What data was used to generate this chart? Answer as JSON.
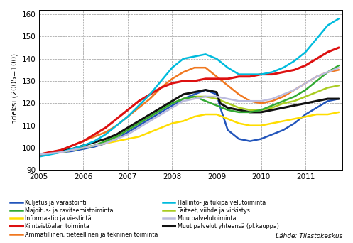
{
  "ylabel": "Indeksi (2005=100)",
  "source": "Lähde: Tilastokeskus",
  "xlim": [
    2005.0,
    2011.83
  ],
  "ylim": [
    90,
    162
  ],
  "yticks": [
    90,
    100,
    110,
    120,
    130,
    140,
    150,
    160
  ],
  "xticks": [
    2005,
    2006,
    2007,
    2008,
    2009,
    2010,
    2011
  ],
  "series": [
    {
      "name": "Kuljetus ja varastointi",
      "color": "#2255bb",
      "lw": 1.8,
      "data": [
        [
          2005.0,
          97
        ],
        [
          2005.25,
          97.5
        ],
        [
          2005.5,
          98
        ],
        [
          2005.75,
          98.5
        ],
        [
          2006.0,
          99.5
        ],
        [
          2006.25,
          100.5
        ],
        [
          2006.5,
          102
        ],
        [
          2006.75,
          104
        ],
        [
          2007.0,
          107
        ],
        [
          2007.25,
          110
        ],
        [
          2007.5,
          113
        ],
        [
          2007.75,
          116
        ],
        [
          2008.0,
          119
        ],
        [
          2008.25,
          122
        ],
        [
          2008.5,
          124
        ],
        [
          2008.75,
          126
        ],
        [
          2009.0,
          124
        ],
        [
          2009.1,
          117
        ],
        [
          2009.25,
          108
        ],
        [
          2009.5,
          104
        ],
        [
          2009.75,
          103
        ],
        [
          2010.0,
          104
        ],
        [
          2010.25,
          106
        ],
        [
          2010.5,
          108
        ],
        [
          2010.75,
          111
        ],
        [
          2011.0,
          115
        ],
        [
          2011.25,
          118
        ],
        [
          2011.5,
          121
        ],
        [
          2011.75,
          122
        ]
      ]
    },
    {
      "name": "Informaatio ja viestintä",
      "color": "#ffdd00",
      "lw": 1.8,
      "data": [
        [
          2005.0,
          97
        ],
        [
          2005.25,
          97.5
        ],
        [
          2005.5,
          98
        ],
        [
          2005.75,
          99
        ],
        [
          2006.0,
          100
        ],
        [
          2006.25,
          101
        ],
        [
          2006.5,
          102
        ],
        [
          2006.75,
          103
        ],
        [
          2007.0,
          104
        ],
        [
          2007.25,
          105
        ],
        [
          2007.5,
          107
        ],
        [
          2007.75,
          109
        ],
        [
          2008.0,
          111
        ],
        [
          2008.25,
          112
        ],
        [
          2008.5,
          114
        ],
        [
          2008.75,
          115
        ],
        [
          2009.0,
          115
        ],
        [
          2009.25,
          113
        ],
        [
          2009.5,
          111
        ],
        [
          2009.75,
          110
        ],
        [
          2010.0,
          110
        ],
        [
          2010.25,
          111
        ],
        [
          2010.5,
          112
        ],
        [
          2010.75,
          113
        ],
        [
          2011.0,
          114
        ],
        [
          2011.25,
          115
        ],
        [
          2011.5,
          115
        ],
        [
          2011.75,
          116
        ]
      ]
    },
    {
      "name": "Ammatillinen, tieteellinen ja tekninen toiminta",
      "color": "#f07820",
      "lw": 1.8,
      "data": [
        [
          2005.0,
          97
        ],
        [
          2005.25,
          98
        ],
        [
          2005.5,
          99
        ],
        [
          2005.75,
          101
        ],
        [
          2006.0,
          103
        ],
        [
          2006.25,
          105
        ],
        [
          2006.5,
          107
        ],
        [
          2006.75,
          110
        ],
        [
          2007.0,
          114
        ],
        [
          2007.25,
          118
        ],
        [
          2007.5,
          122
        ],
        [
          2007.75,
          127
        ],
        [
          2008.0,
          131
        ],
        [
          2008.25,
          134
        ],
        [
          2008.5,
          136
        ],
        [
          2008.75,
          136
        ],
        [
          2009.0,
          132
        ],
        [
          2009.25,
          128
        ],
        [
          2009.5,
          124
        ],
        [
          2009.75,
          121
        ],
        [
          2010.0,
          120
        ],
        [
          2010.25,
          121
        ],
        [
          2010.5,
          123
        ],
        [
          2010.75,
          126
        ],
        [
          2011.0,
          129
        ],
        [
          2011.25,
          132
        ],
        [
          2011.5,
          134
        ],
        [
          2011.75,
          135
        ]
      ]
    },
    {
      "name": "Taiteet, viihde ja virkistys",
      "color": "#aacc22",
      "lw": 1.8,
      "data": [
        [
          2005.0,
          97
        ],
        [
          2005.25,
          97.5
        ],
        [
          2005.5,
          98
        ],
        [
          2005.75,
          99
        ],
        [
          2006.0,
          100
        ],
        [
          2006.25,
          101
        ],
        [
          2006.5,
          103
        ],
        [
          2006.75,
          105
        ],
        [
          2007.0,
          108
        ],
        [
          2007.25,
          111
        ],
        [
          2007.5,
          114
        ],
        [
          2007.75,
          117
        ],
        [
          2008.0,
          120
        ],
        [
          2008.25,
          122
        ],
        [
          2008.5,
          123
        ],
        [
          2008.75,
          123
        ],
        [
          2009.0,
          122
        ],
        [
          2009.25,
          120
        ],
        [
          2009.5,
          118
        ],
        [
          2009.75,
          117
        ],
        [
          2010.0,
          117
        ],
        [
          2010.25,
          118
        ],
        [
          2010.5,
          120
        ],
        [
          2010.75,
          121
        ],
        [
          2011.0,
          123
        ],
        [
          2011.25,
          125
        ],
        [
          2011.5,
          127
        ],
        [
          2011.75,
          128
        ]
      ]
    },
    {
      "name": "Muut palvelut yhteensä (pl.kauppa)",
      "color": "#111111",
      "lw": 2.2,
      "data": [
        [
          2005.0,
          97
        ],
        [
          2005.25,
          97.5
        ],
        [
          2005.5,
          98.5
        ],
        [
          2005.75,
          99.5
        ],
        [
          2006.0,
          101
        ],
        [
          2006.25,
          102.5
        ],
        [
          2006.5,
          104
        ],
        [
          2006.75,
          106
        ],
        [
          2007.0,
          109
        ],
        [
          2007.25,
          112
        ],
        [
          2007.5,
          115
        ],
        [
          2007.75,
          118
        ],
        [
          2008.0,
          121
        ],
        [
          2008.25,
          124
        ],
        [
          2008.5,
          125
        ],
        [
          2008.75,
          126
        ],
        [
          2009.0,
          125
        ],
        [
          2009.08,
          120
        ],
        [
          2009.25,
          118
        ],
        [
          2009.5,
          117
        ],
        [
          2009.75,
          116
        ],
        [
          2010.0,
          116
        ],
        [
          2010.25,
          117
        ],
        [
          2010.5,
          118
        ],
        [
          2010.75,
          119
        ],
        [
          2011.0,
          120
        ],
        [
          2011.25,
          121
        ],
        [
          2011.5,
          122
        ],
        [
          2011.75,
          122
        ]
      ]
    },
    {
      "name": "Majoitus- ja ravitsemistoiminta",
      "color": "#33aa33",
      "lw": 1.8,
      "data": [
        [
          2005.0,
          97
        ],
        [
          2005.25,
          97.5
        ],
        [
          2005.5,
          98
        ],
        [
          2005.75,
          99
        ],
        [
          2006.0,
          100
        ],
        [
          2006.25,
          101
        ],
        [
          2006.5,
          103
        ],
        [
          2006.75,
          105
        ],
        [
          2007.0,
          108
        ],
        [
          2007.25,
          111
        ],
        [
          2007.5,
          114
        ],
        [
          2007.75,
          117
        ],
        [
          2008.0,
          120
        ],
        [
          2008.25,
          122
        ],
        [
          2008.5,
          123
        ],
        [
          2008.75,
          121
        ],
        [
          2009.0,
          119
        ],
        [
          2009.25,
          117
        ],
        [
          2009.5,
          116
        ],
        [
          2009.75,
          116
        ],
        [
          2010.0,
          117
        ],
        [
          2010.25,
          119
        ],
        [
          2010.5,
          121
        ],
        [
          2010.75,
          123
        ],
        [
          2011.0,
          126
        ],
        [
          2011.25,
          130
        ],
        [
          2011.5,
          134
        ],
        [
          2011.75,
          137
        ]
      ]
    },
    {
      "name": "Kiinteistöalan toiminta",
      "color": "#dd1111",
      "lw": 2.2,
      "data": [
        [
          2005.0,
          97
        ],
        [
          2005.25,
          98
        ],
        [
          2005.5,
          99
        ],
        [
          2005.75,
          101
        ],
        [
          2006.0,
          103
        ],
        [
          2006.25,
          106
        ],
        [
          2006.5,
          109
        ],
        [
          2006.75,
          113
        ],
        [
          2007.0,
          117
        ],
        [
          2007.25,
          121
        ],
        [
          2007.5,
          124
        ],
        [
          2007.75,
          127
        ],
        [
          2008.0,
          129
        ],
        [
          2008.25,
          130
        ],
        [
          2008.5,
          130
        ],
        [
          2008.75,
          131
        ],
        [
          2009.0,
          131
        ],
        [
          2009.25,
          131
        ],
        [
          2009.5,
          132
        ],
        [
          2009.75,
          132
        ],
        [
          2010.0,
          133
        ],
        [
          2010.25,
          133
        ],
        [
          2010.5,
          134
        ],
        [
          2010.75,
          135
        ],
        [
          2011.0,
          137
        ],
        [
          2011.25,
          140
        ],
        [
          2011.5,
          143
        ],
        [
          2011.75,
          145
        ]
      ]
    },
    {
      "name": "Hallinto- ja tukipalvelutoiminta",
      "color": "#00bbdd",
      "lw": 1.8,
      "data": [
        [
          2005.0,
          96
        ],
        [
          2005.25,
          97
        ],
        [
          2005.5,
          98
        ],
        [
          2005.75,
          99.5
        ],
        [
          2006.0,
          101
        ],
        [
          2006.25,
          103
        ],
        [
          2006.5,
          106
        ],
        [
          2006.75,
          110
        ],
        [
          2007.0,
          114
        ],
        [
          2007.25,
          119
        ],
        [
          2007.5,
          124
        ],
        [
          2007.75,
          130
        ],
        [
          2008.0,
          136
        ],
        [
          2008.25,
          140
        ],
        [
          2008.5,
          141
        ],
        [
          2008.75,
          142
        ],
        [
          2009.0,
          140
        ],
        [
          2009.25,
          136
        ],
        [
          2009.5,
          133
        ],
        [
          2009.75,
          133
        ],
        [
          2010.0,
          133
        ],
        [
          2010.25,
          134
        ],
        [
          2010.5,
          136
        ],
        [
          2010.75,
          139
        ],
        [
          2011.0,
          143
        ],
        [
          2011.25,
          149
        ],
        [
          2011.5,
          155
        ],
        [
          2011.75,
          158
        ]
      ]
    },
    {
      "name": "Muu palvelutoiminta",
      "color": "#bbbbdd",
      "lw": 1.8,
      "data": [
        [
          2005.0,
          97
        ],
        [
          2005.25,
          97.5
        ],
        [
          2005.5,
          98
        ],
        [
          2005.75,
          99
        ],
        [
          2006.0,
          100
        ],
        [
          2006.25,
          101
        ],
        [
          2006.5,
          102
        ],
        [
          2006.75,
          104
        ],
        [
          2007.0,
          106
        ],
        [
          2007.25,
          109
        ],
        [
          2007.5,
          112
        ],
        [
          2007.75,
          115
        ],
        [
          2008.0,
          118
        ],
        [
          2008.25,
          121
        ],
        [
          2008.5,
          122
        ],
        [
          2008.75,
          123
        ],
        [
          2009.0,
          123
        ],
        [
          2009.25,
          122
        ],
        [
          2009.5,
          121
        ],
        [
          2009.75,
          121
        ],
        [
          2010.0,
          121
        ],
        [
          2010.25,
          122
        ],
        [
          2010.5,
          124
        ],
        [
          2010.75,
          126
        ],
        [
          2011.0,
          129
        ],
        [
          2011.25,
          132
        ],
        [
          2011.5,
          134
        ],
        [
          2011.75,
          136
        ]
      ]
    }
  ],
  "legend_col1_indices": [
    0,
    1,
    2,
    3,
    4
  ],
  "legend_col2_indices": [
    5,
    6,
    7,
    8
  ],
  "legend_col1_labels": [
    "Kuljetus ja varastointi",
    "Informaatio ja viestintä",
    "Ammatillinen, tieteellinen ja tekninen toiminta",
    "Taiteet, viihde ja virkistys",
    "Muut palvelut yhteensä (pl.kauppa)"
  ],
  "legend_col2_labels": [
    "Majoitus- ja ravitsemistoiminta",
    "Kiinteistöalan toiminta",
    "Hallinto- ja tukipalvelutoiminta",
    "Muu palvelutoiminta"
  ]
}
